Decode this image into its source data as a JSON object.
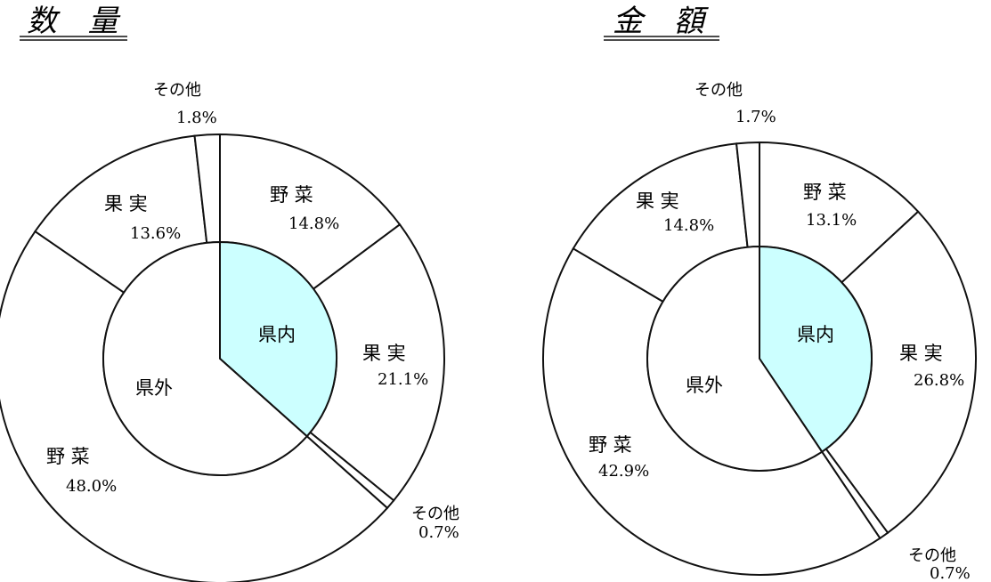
{
  "chart_data": [
    {
      "type": "pie",
      "title": "数 量",
      "inner": {
        "labels": [
          "県内",
          "県外"
        ],
        "values": [
          36.6,
          63.4
        ],
        "colors": [
          "#ccffff",
          "#ffffff"
        ]
      },
      "outer": {
        "slices": [
          {
            "name": "野 菜",
            "pct": "14.8%",
            "value": 14.8
          },
          {
            "name": "果 実",
            "pct": "21.1%",
            "value": 21.1
          },
          {
            "name": "その他",
            "pct": "0.7%",
            "value": 0.7
          },
          {
            "name": "野 菜",
            "pct": "48.0%",
            "value": 48.0
          },
          {
            "name": "果 実",
            "pct": "13.6%",
            "value": 13.6
          },
          {
            "name": "その他",
            "pct": "1.8%",
            "value": 1.8
          }
        ]
      }
    },
    {
      "type": "pie",
      "title": "金 額",
      "inner": {
        "labels": [
          "県内",
          "県外"
        ],
        "values": [
          40.6,
          59.4
        ],
        "colors": [
          "#ccffff",
          "#ffffff"
        ]
      },
      "outer": {
        "slices": [
          {
            "name": "野 菜",
            "pct": "13.1%",
            "value": 13.1
          },
          {
            "name": "果 実",
            "pct": "26.8%",
            "value": 26.8
          },
          {
            "name": "その他",
            "pct": "0.7%",
            "value": 0.7
          },
          {
            "name": "野 菜",
            "pct": "42.9%",
            "value": 42.9
          },
          {
            "name": "果 実",
            "pct": "14.8%",
            "value": 14.8
          },
          {
            "name": "その他",
            "pct": "1.7%",
            "value": 1.7
          }
        ]
      }
    }
  ]
}
